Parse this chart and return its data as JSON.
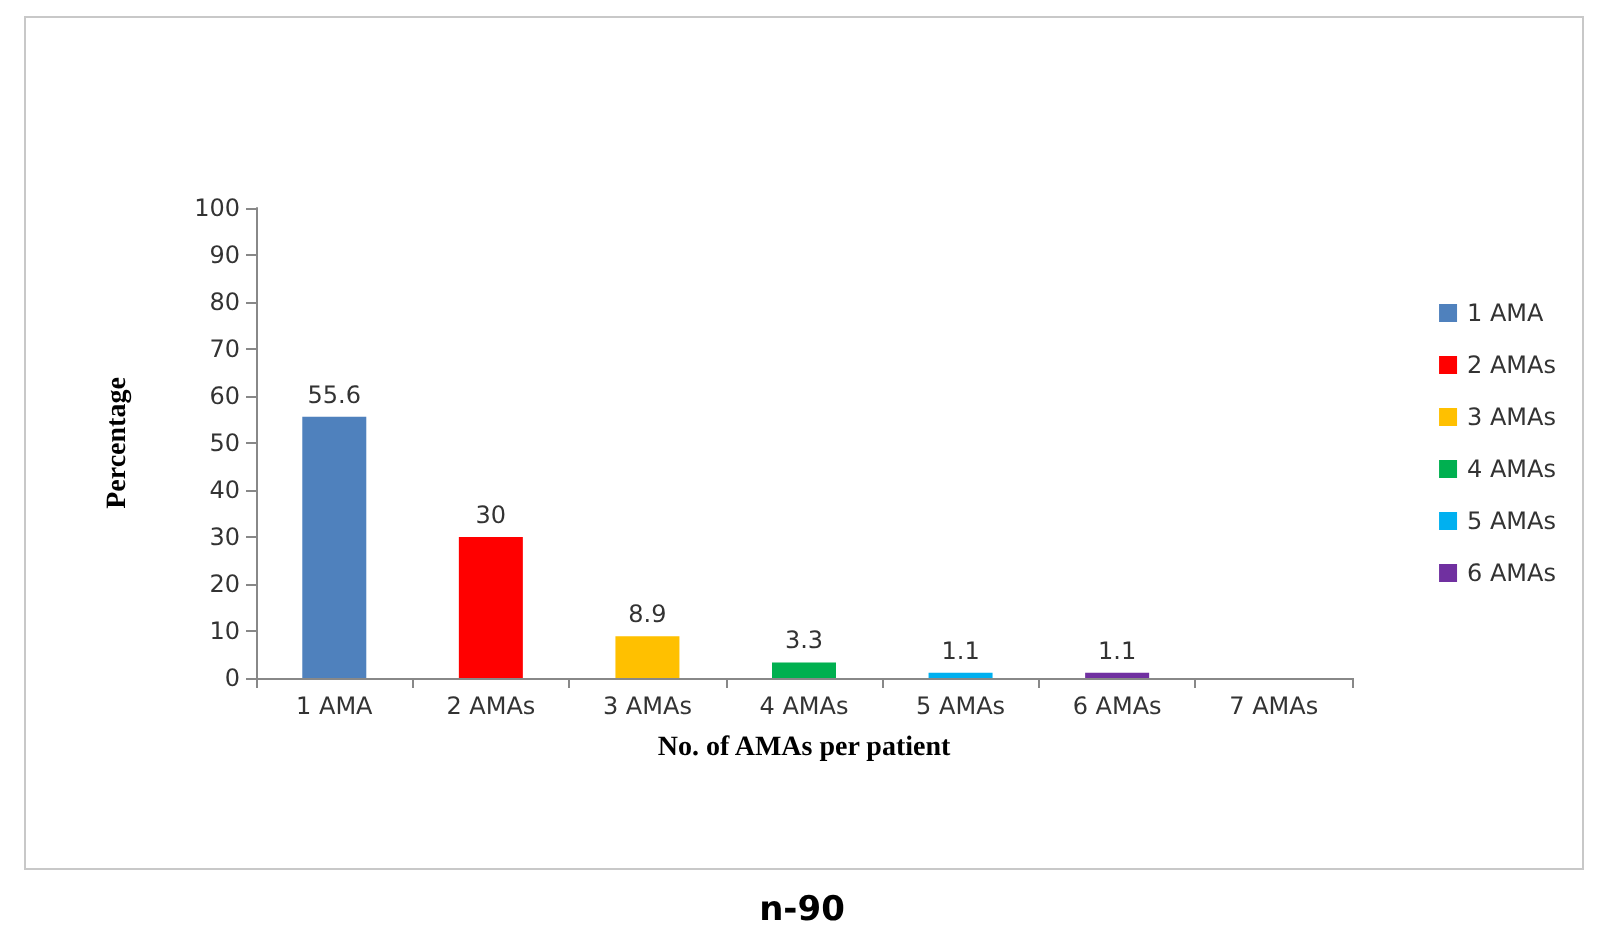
{
  "chart_data": {
    "type": "bar",
    "xlabel": "No. of AMAs per patient",
    "ylabel": "Percentage",
    "categories": [
      "1 AMA",
      "2 AMAs",
      "3 AMAs",
      "4 AMAs",
      "5 AMAs",
      "6 AMAs",
      "7 AMAs"
    ],
    "series": [
      {
        "name": "1 AMA",
        "color": "#4f81bd",
        "values": [
          55.6,
          null,
          null,
          null,
          null,
          null,
          null
        ]
      },
      {
        "name": "2 AMAs",
        "color": "#ff0000",
        "values": [
          null,
          30,
          null,
          null,
          null,
          null,
          null
        ]
      },
      {
        "name": "3 AMAs",
        "color": "#ffc000",
        "values": [
          null,
          null,
          8.9,
          null,
          null,
          null,
          null
        ]
      },
      {
        "name": "4 AMAs",
        "color": "#00b050",
        "values": [
          null,
          null,
          null,
          3.3,
          null,
          null,
          null
        ]
      },
      {
        "name": "5 AMAs",
        "color": "#00b0f0",
        "values": [
          null,
          null,
          null,
          null,
          1.1,
          null,
          null
        ]
      },
      {
        "name": "6 AMAs",
        "color": "#7030a0",
        "values": [
          null,
          null,
          null,
          null,
          null,
          1.1,
          null
        ]
      }
    ],
    "stacked": true,
    "ylim": [
      0,
      100
    ],
    "yticks": [
      0,
      10,
      20,
      30,
      40,
      50,
      60,
      70,
      80,
      90,
      100
    ],
    "grid": false,
    "legend": "right",
    "data_labels": true,
    "annotations": [
      "n-90"
    ]
  }
}
